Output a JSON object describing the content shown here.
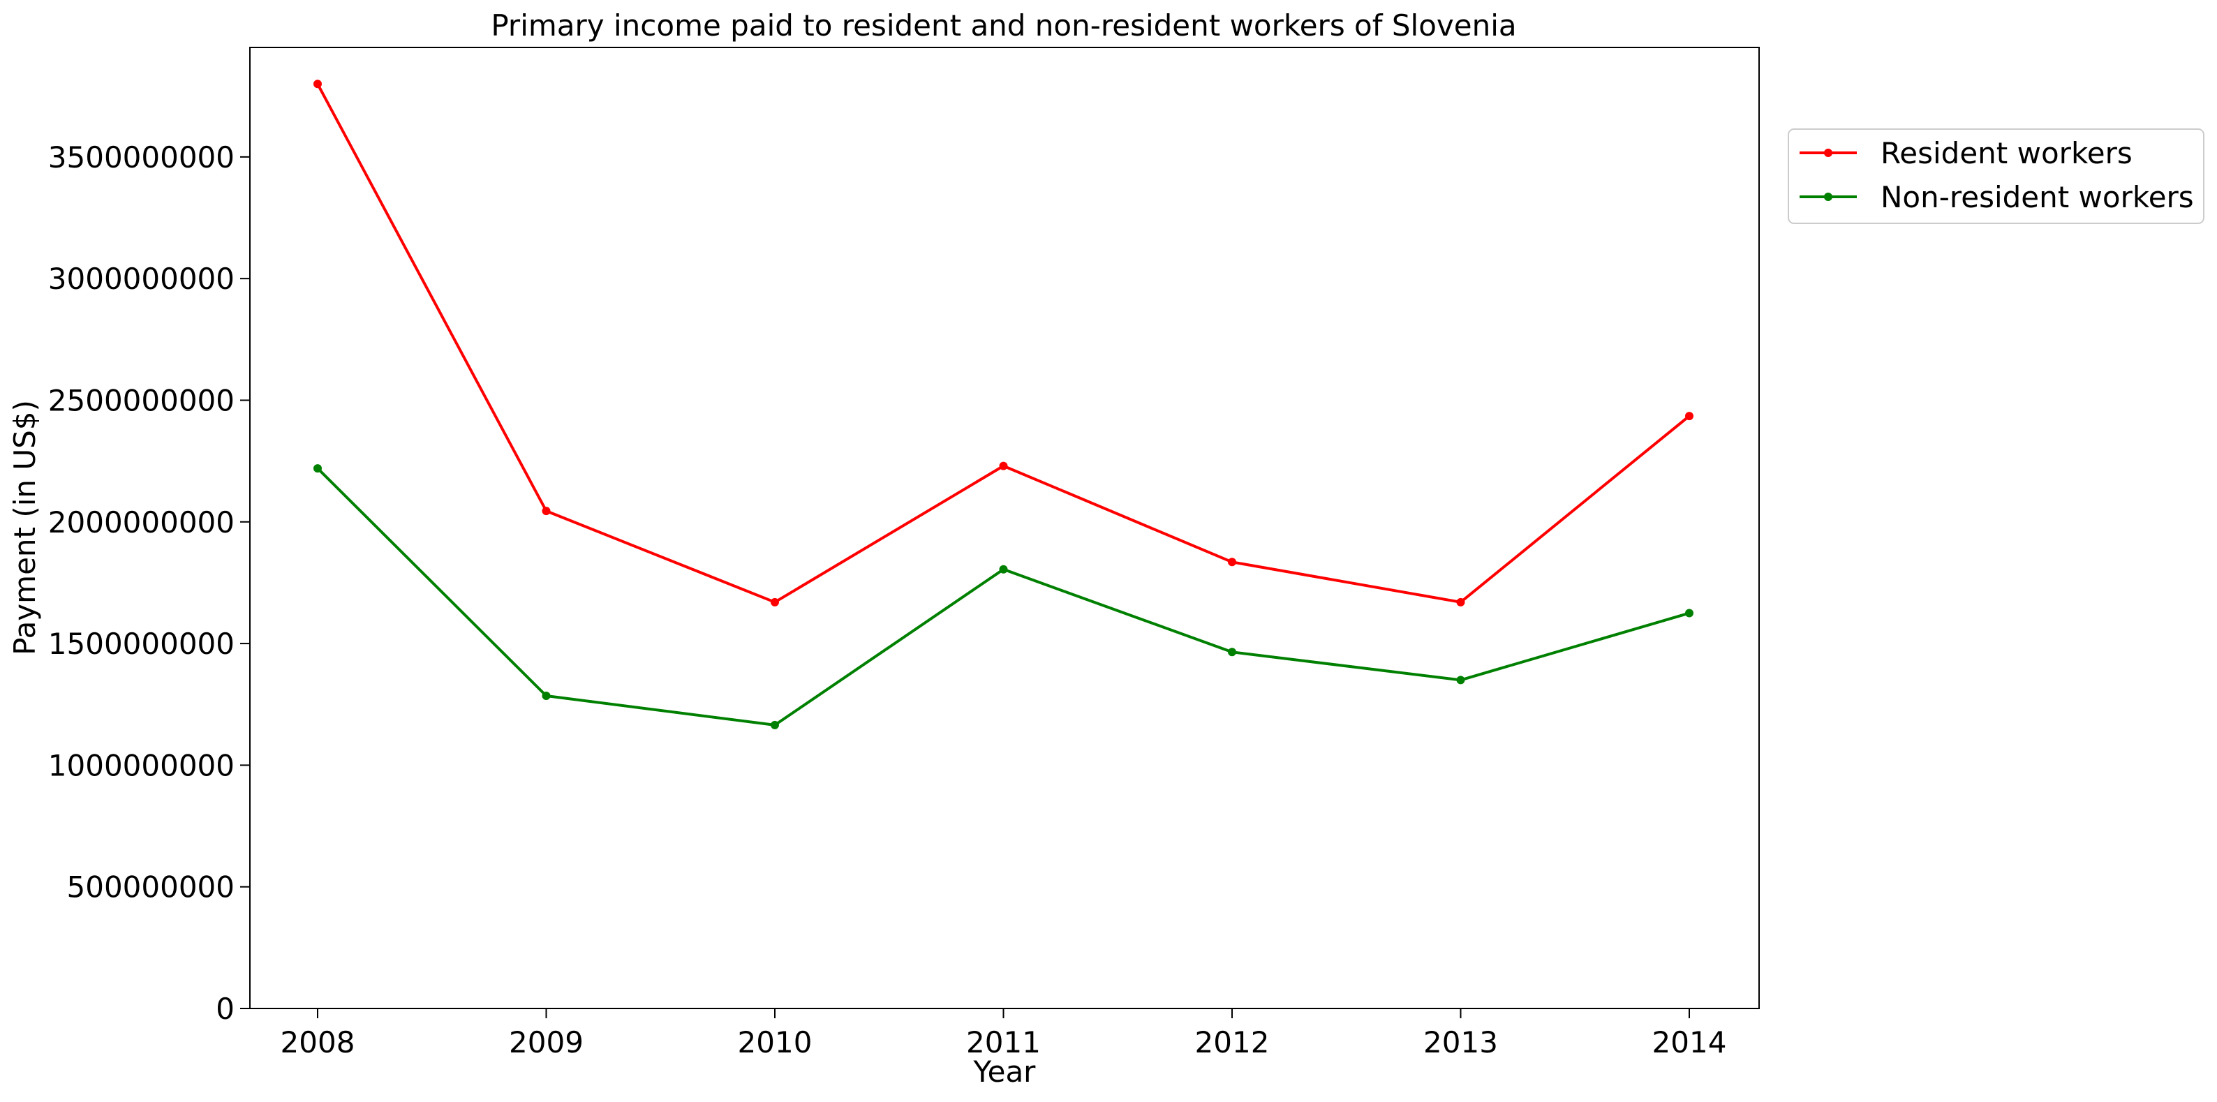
{
  "chart_data": {
    "type": "line",
    "title": "Primary income paid to resident and non-resident workers of Slovenia",
    "xlabel": "Year",
    "ylabel": "Payment (in US$)",
    "categories": [
      "2008",
      "2009",
      "2010",
      "2011",
      "2012",
      "2013",
      "2014"
    ],
    "ylim": [
      0,
      3950000000
    ],
    "yticks": [
      0,
      500000000,
      1000000000,
      1500000000,
      2000000000,
      2500000000,
      3000000000,
      3500000000
    ],
    "ytick_labels": [
      "0",
      "500000000",
      "1000000000",
      "1500000000",
      "2000000000",
      "2500000000",
      "3000000000",
      "3500000000"
    ],
    "grid": false,
    "legend_position": "outside-top-right",
    "series": [
      {
        "name": "Resident workers",
        "color": "#ff0000",
        "values": [
          3800000000,
          2045000000,
          1670000000,
          2230000000,
          1835000000,
          1670000000,
          2435000000
        ]
      },
      {
        "name": "Non-resident workers",
        "color": "#008000",
        "values": [
          2220000000,
          1285000000,
          1165000000,
          1805000000,
          1465000000,
          1350000000,
          1625000000
        ]
      }
    ]
  }
}
